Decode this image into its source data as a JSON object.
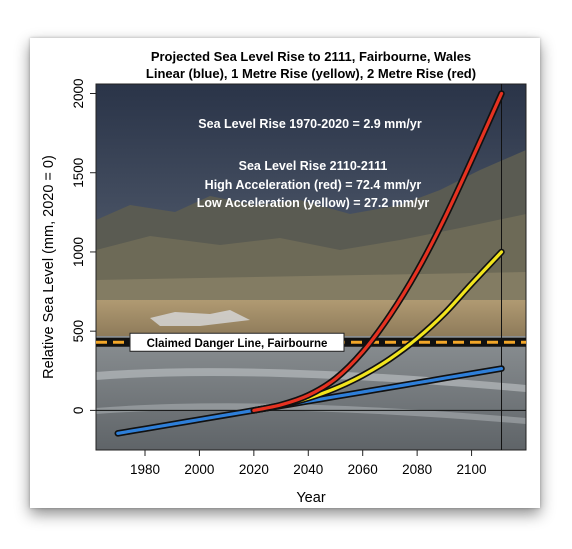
{
  "chart_data": {
    "type": "line",
    "title": "Projected Sea Level Rise to 2111, Fairbourne, Wales",
    "subtitle": "Linear (blue), 1 Metre Rise (yellow), 2 Metre Rise (red)",
    "xlabel": "Year",
    "ylabel": "Relative Sea Level (mm, 2020 = 0)",
    "xlim": [
      1962,
      2120
    ],
    "ylim": [
      -250,
      2060
    ],
    "x_ticks": [
      1980,
      2000,
      2020,
      2040,
      2060,
      2080,
      2100
    ],
    "y_ticks": [
      0,
      500,
      1000,
      1500,
      2000
    ],
    "grid": false,
    "x_reference_line": 2111,
    "background_image": "photo of Fairbourne beach, estuary and mountains",
    "series": [
      {
        "name": "Linear (blue)",
        "color": "#2e7fd9",
        "x": [
          1970,
          1980,
          1990,
          2000,
          2010,
          2020,
          2030,
          2040,
          2050,
          2060,
          2070,
          2080,
          2090,
          2100,
          2111
        ],
        "values": [
          -145,
          -116,
          -87,
          -58,
          -29,
          0,
          29,
          58,
          87,
          116,
          145,
          174,
          203,
          232,
          264
        ]
      },
      {
        "name": "1 Metre Rise (yellow)",
        "color": "#f2e51d",
        "x": [
          2020,
          2030,
          2040,
          2050,
          2060,
          2070,
          2080,
          2090,
          2100,
          2111
        ],
        "values": [
          0,
          32,
          77,
          139,
          221,
          325,
          454,
          611,
          799,
          1000
        ]
      },
      {
        "name": "2 Metre Rise (red)",
        "color": "#e63221",
        "x": [
          2020,
          2030,
          2040,
          2050,
          2060,
          2070,
          2080,
          2090,
          2100,
          2111
        ],
        "values": [
          0,
          35,
          95,
          200,
          370,
          600,
          880,
          1210,
          1580,
          2000
        ]
      }
    ],
    "reference_lines": [
      {
        "label": "Claimed Danger Line, Fairbourne",
        "y": 430,
        "style": "dashed",
        "color": "#f2a628"
      }
    ],
    "annotations": [
      {
        "text": "Sea Level Rise 1970-2020 = 2.9 mm/yr"
      },
      {
        "text": "Sea Level Rise 2110-2111"
      },
      {
        "text": "High Acceleration (red) = 72.4 mm/yr"
      },
      {
        "text": "Low Acceleration (yellow) = 27.2 mm/yr"
      }
    ]
  }
}
